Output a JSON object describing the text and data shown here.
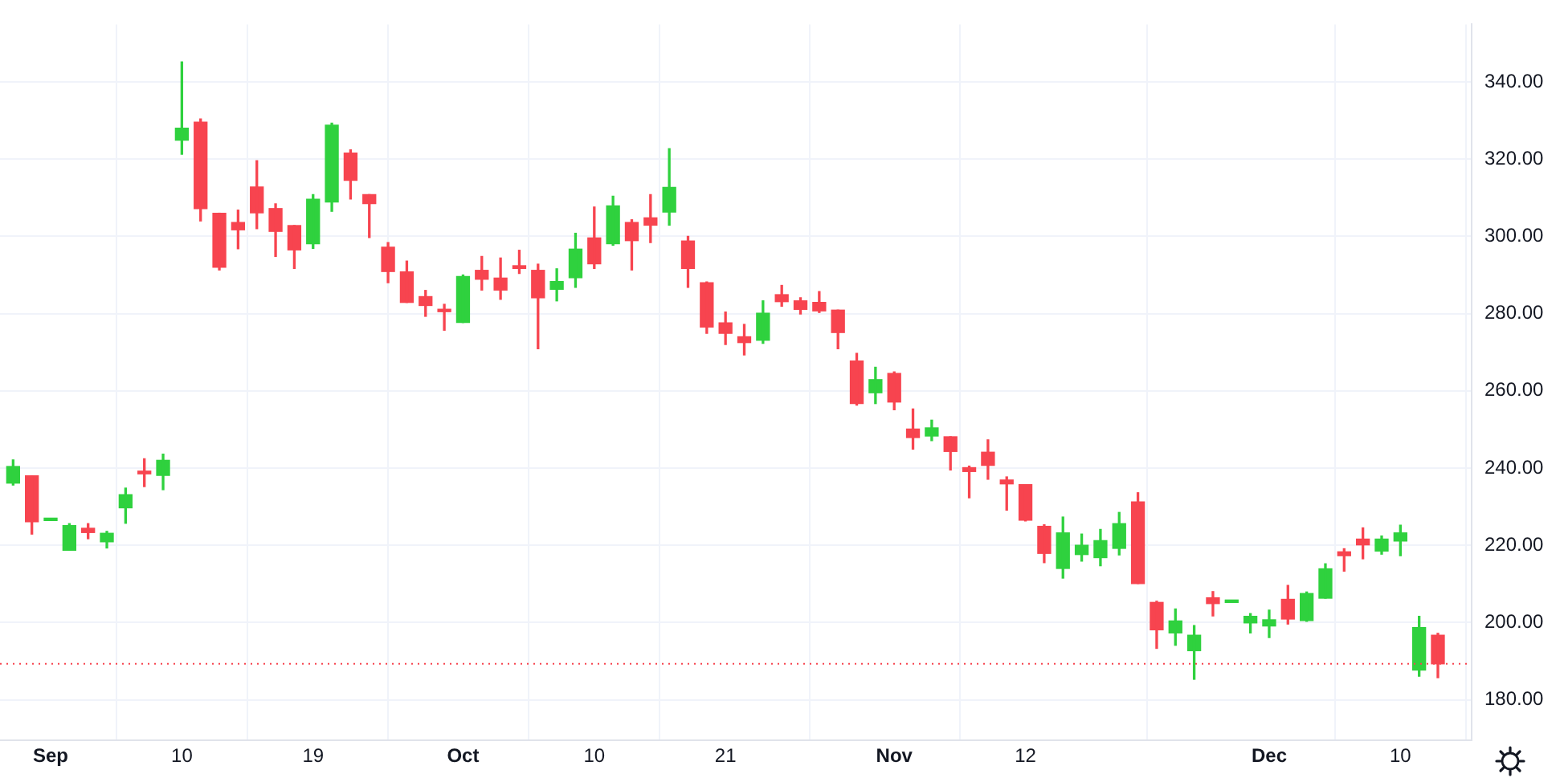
{
  "chart_data": {
    "type": "candlestick",
    "categories": [
      null,
      null,
      "Sep",
      null,
      null,
      null,
      null,
      null,
      null,
      "10",
      null,
      null,
      null,
      null,
      null,
      null,
      "19",
      null,
      null,
      null,
      null,
      null,
      null,
      null,
      "Oct",
      null,
      null,
      null,
      null,
      null,
      null,
      "10",
      null,
      null,
      null,
      null,
      null,
      null,
      "21",
      null,
      null,
      null,
      null,
      null,
      null,
      null,
      null,
      "Nov",
      null,
      null,
      null,
      null,
      null,
      null,
      "12",
      null,
      null,
      null,
      null,
      null,
      null,
      null,
      null,
      null,
      null,
      null,
      null,
      "Dec",
      null,
      null,
      null,
      null,
      null,
      null,
      "10",
      null,
      null
    ],
    "ohlc": [
      [
        236.1,
        242.1,
        235.6,
        240.4
      ],
      [
        238,
        238,
        222.9,
        226.1
      ],
      [
        226.4,
        226.5,
        226.4,
        226.5
      ],
      [
        218.7,
        225.6,
        218.7,
        225.1
      ],
      [
        224.4,
        225.6,
        221.7,
        223.3
      ],
      [
        220.9,
        223.6,
        219.3,
        223.1
      ],
      [
        229.7,
        234.8,
        225.7,
        233.1
      ],
      [
        239.2,
        242.4,
        235.2,
        238.5
      ],
      [
        238.1,
        243.6,
        234.4,
        242
      ],
      [
        324.9,
        345.2,
        321.3,
        328
      ],
      [
        329.6,
        330.4,
        304,
        307.2
      ],
      [
        306,
        306,
        291.3,
        292
      ],
      [
        303.6,
        306.8,
        296.8,
        301.7
      ],
      [
        312.8,
        319.6,
        302,
        306.1
      ],
      [
        307.2,
        308.4,
        294.8,
        301.3
      ],
      [
        302.8,
        302.8,
        291.7,
        296.5
      ],
      [
        298.1,
        310.8,
        296.9,
        309.6
      ],
      [
        308.9,
        329.3,
        306.5,
        328.8
      ],
      [
        321.6,
        322.4,
        309.7,
        314.5
      ],
      [
        310.8,
        310.8,
        299.7,
        308.5
      ],
      [
        297.2,
        298.4,
        288,
        290.9
      ],
      [
        290.8,
        293.6,
        282.9,
        282.9
      ],
      [
        284.4,
        286,
        279.3,
        282.1
      ],
      [
        281.1,
        282.4,
        275.7,
        280.5
      ],
      [
        277.7,
        290,
        277.7,
        289.6
      ],
      [
        291.2,
        294.8,
        286.1,
        288.9
      ],
      [
        289.2,
        294.4,
        283.7,
        286.1
      ],
      [
        292.4,
        296.4,
        290.4,
        291.7
      ],
      [
        291.2,
        292.8,
        270.9,
        284.1
      ],
      [
        286.3,
        291.6,
        283.3,
        288.3
      ],
      [
        289.3,
        300.8,
        286.8,
        296.7
      ],
      [
        299.6,
        307.6,
        291.7,
        292.9
      ],
      [
        298.1,
        310.4,
        297.7,
        307.9
      ],
      [
        303.6,
        304.3,
        291.3,
        298.9
      ],
      [
        304.8,
        310.8,
        298.4,
        302.9
      ],
      [
        306.3,
        322.7,
        302.9,
        312.7
      ],
      [
        298.8,
        300,
        286.8,
        291.7
      ],
      [
        288,
        288.2,
        274.9,
        276.5
      ],
      [
        277.6,
        280.4,
        272,
        274.9
      ],
      [
        274,
        277.2,
        269.3,
        272.5
      ],
      [
        273.1,
        283.3,
        272.3,
        280.1
      ],
      [
        284.9,
        287.3,
        281.9,
        283.1
      ],
      [
        283.3,
        284.1,
        279.9,
        281.1
      ],
      [
        282.9,
        285.7,
        280.3,
        280.7
      ],
      [
        280.9,
        280.9,
        270.9,
        275.1
      ],
      [
        267.7,
        269.7,
        256.3,
        256.7
      ],
      [
        259.5,
        266.1,
        256.7,
        262.9
      ],
      [
        264.5,
        264.9,
        255.1,
        257.1
      ],
      [
        250.1,
        255.3,
        244.9,
        247.9
      ],
      [
        248.3,
        252.4,
        247.1,
        250.4
      ],
      [
        248.1,
        248.1,
        239.5,
        244.3
      ],
      [
        240.1,
        240.5,
        232.3,
        239.1
      ],
      [
        244.1,
        247.3,
        237.1,
        240.7
      ],
      [
        236.9,
        237.7,
        229.1,
        235.9
      ],
      [
        235.7,
        235.7,
        226.3,
        226.5
      ],
      [
        224.9,
        225.3,
        215.5,
        217.9
      ],
      [
        214,
        227.3,
        211.5,
        223.2
      ],
      [
        217.6,
        222.9,
        215.9,
        220
      ],
      [
        216.8,
        224.1,
        214.7,
        221.2
      ],
      [
        219.2,
        228.5,
        217.5,
        225.6
      ],
      [
        231.2,
        233.6,
        210.1,
        210.1
      ],
      [
        205.2,
        205.5,
        193.3,
        198.1
      ],
      [
        197.3,
        203.5,
        194.1,
        200.4
      ],
      [
        192.7,
        199.2,
        185.3,
        196.7
      ],
      [
        206.4,
        208,
        201.7,
        204.9
      ],
      [
        205.2,
        205.3,
        205.2,
        205.3
      ],
      [
        199.9,
        202.3,
        197.3,
        201.6
      ],
      [
        199.1,
        203.2,
        196.1,
        200.7
      ],
      [
        206,
        209.6,
        199.6,
        200.9
      ],
      [
        200.5,
        207.9,
        200.3,
        207.5
      ],
      [
        206.3,
        215.2,
        206.3,
        213.9
      ],
      [
        218.3,
        219.1,
        213.3,
        217.3
      ],
      [
        221.6,
        224.5,
        216.5,
        220.1
      ],
      [
        218.5,
        222.4,
        217.7,
        221.6
      ],
      [
        221.1,
        225.2,
        217.3,
        223.2
      ],
      [
        187.7,
        201.6,
        186.1,
        198.7
      ],
      [
        196.7,
        197.2,
        185.7,
        189.3
      ]
    ],
    "colors": [
      "#2fd13e",
      "#f7444f",
      "#2fd13e",
      "#2fd13e",
      "#f7444f",
      "#2fd13e",
      "#2fd13e",
      "#f7444f",
      "#2fd13e",
      "#2fd13e",
      "#f7444f",
      "#f7444f",
      "#f7444f",
      "#f7444f",
      "#f7444f",
      "#f7444f",
      "#2fd13e",
      "#2fd13e",
      "#f7444f",
      "#f7444f",
      "#f7444f",
      "#f7444f",
      "#f7444f",
      "#f7444f",
      "#2fd13e",
      "#f7444f",
      "#f7444f",
      "#f7444f",
      "#f7444f",
      "#2fd13e",
      "#2fd13e",
      "#f7444f",
      "#2fd13e",
      "#f7444f",
      "#f7444f",
      "#2fd13e",
      "#f7444f",
      "#f7444f",
      "#f7444f",
      "#f7444f",
      "#2fd13e",
      "#f7444f",
      "#f7444f",
      "#f7444f",
      "#f7444f",
      "#f7444f",
      "#2fd13e",
      "#f7444f",
      "#f7444f",
      "#2fd13e",
      "#f7444f",
      "#f7444f",
      "#f7444f",
      "#f7444f",
      "#f7444f",
      "#f7444f",
      "#2fd13e",
      "#2fd13e",
      "#2fd13e",
      "#2fd13e",
      "#f7444f",
      "#f7444f",
      "#2fd13e",
      "#2fd13e",
      "#f7444f",
      "#2fd13e",
      "#2fd13e",
      "#2fd13e",
      "#f7444f",
      "#2fd13e",
      "#2fd13e",
      "#f7444f",
      "#f7444f",
      "#2fd13e",
      "#2fd13e",
      "#2fd13e",
      "#f7444f"
    ],
    "ylim": [
      169.5,
      354.9
    ],
    "yticks": [
      {
        "value": 180,
        "label": "180.00"
      },
      {
        "value": 200,
        "label": "200.00"
      },
      {
        "value": 220,
        "label": "220.00"
      },
      {
        "value": 240,
        "label": "240.00"
      },
      {
        "value": 260,
        "label": "260.00"
      },
      {
        "value": 280,
        "label": "280.00"
      },
      {
        "value": 300,
        "label": "300.00"
      },
      {
        "value": 320,
        "label": "320.00"
      },
      {
        "value": 340,
        "label": "340.00"
      }
    ],
    "ref_lines": [
      {
        "axis": "y",
        "value": 189.3,
        "color": "#f7444f",
        "line_style": "dotted"
      }
    ],
    "grid": true
  }
}
